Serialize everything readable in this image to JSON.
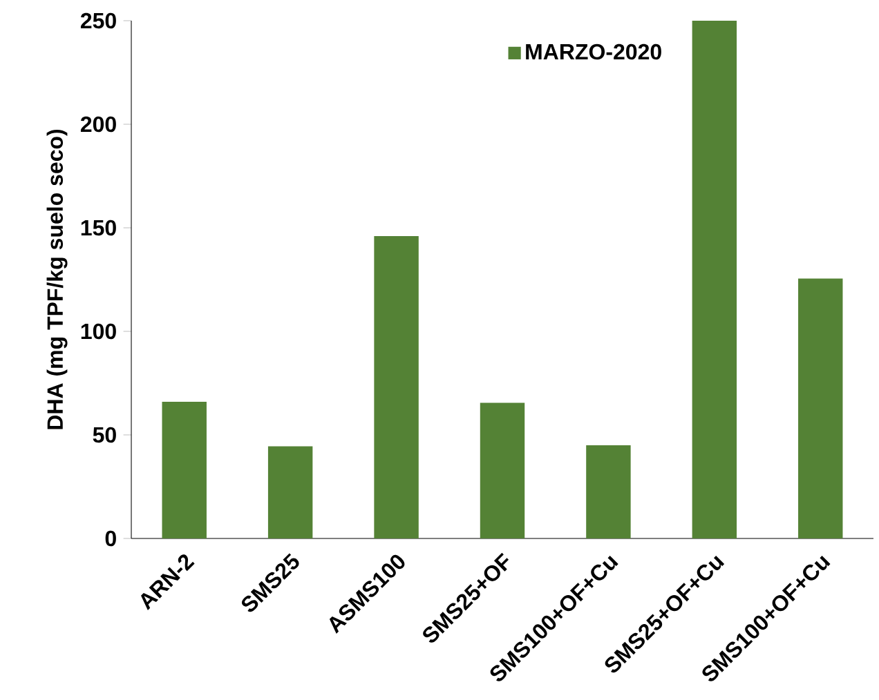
{
  "chart_data": {
    "type": "bar",
    "ylabel": "DHA (mg TPF/kg suelo seco)",
    "categories": [
      "ARN-2",
      "SMS25",
      "ASMS100",
      "SMS25+OF",
      "SMS100+OF+Cu",
      "SMS25+OF+Cu",
      "SMS100+OF+Cu"
    ],
    "series": [
      {
        "name": "MARZO-2020",
        "color": "#548235",
        "values": [
          66,
          44.5,
          146,
          65.5,
          45,
          250,
          125.5
        ]
      }
    ],
    "ylim": [
      0,
      250
    ],
    "yticks": [
      0,
      50,
      100,
      150,
      200,
      250
    ],
    "grid": false,
    "legend": "top right"
  }
}
